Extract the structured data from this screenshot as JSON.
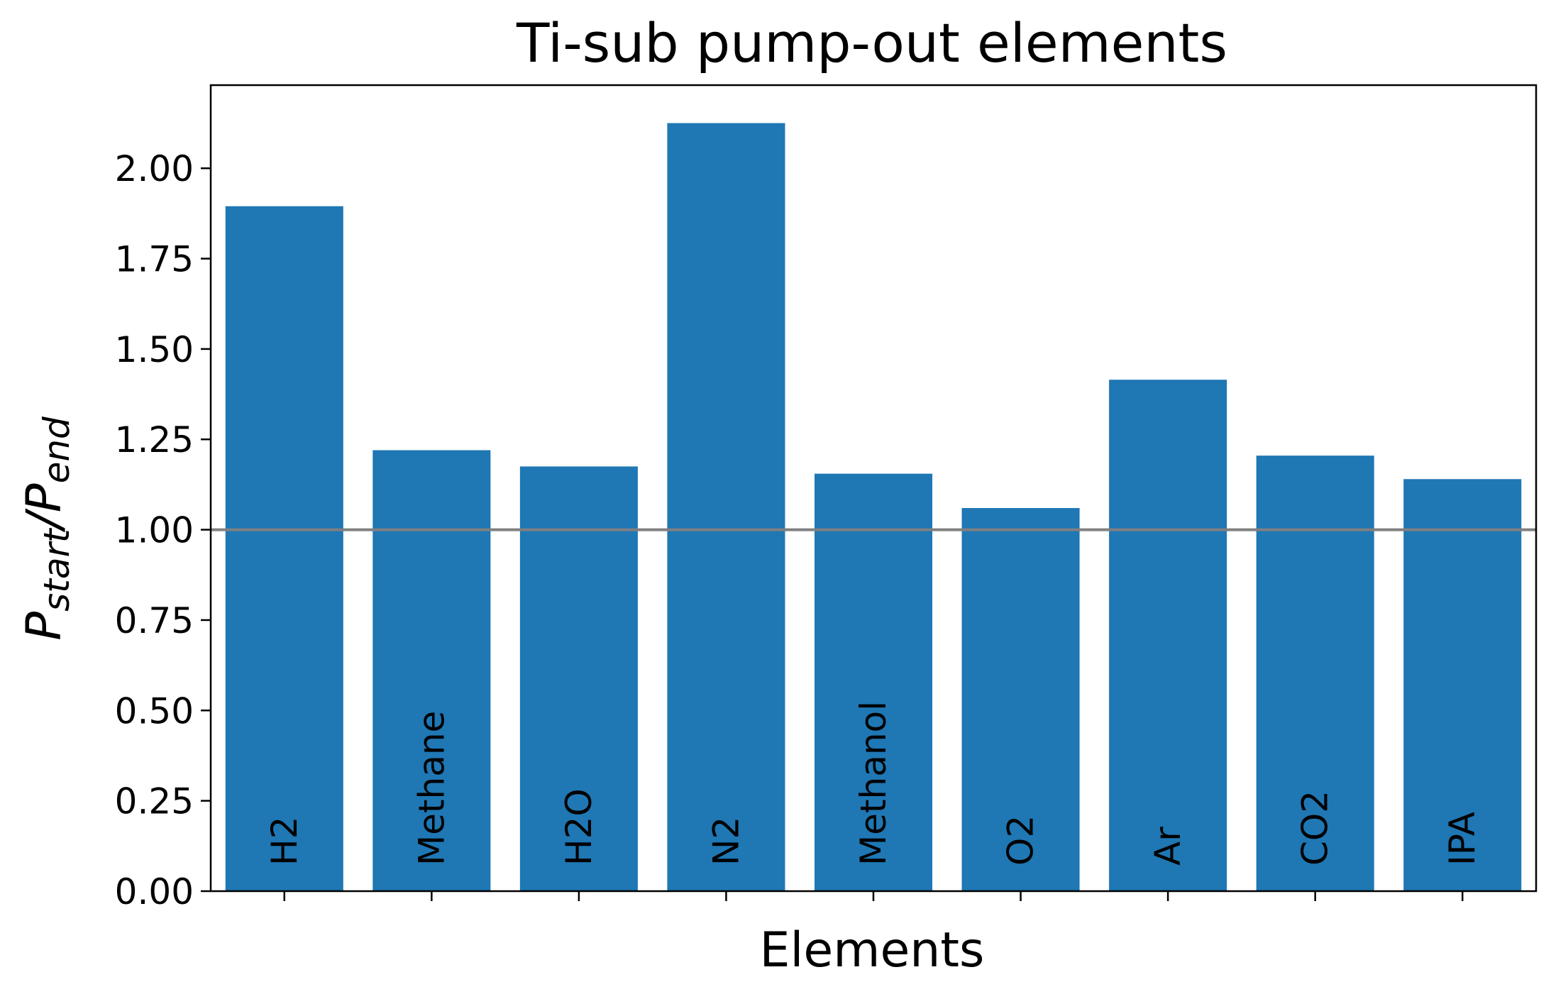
{
  "chart_data": {
    "type": "bar",
    "title": "Ti-sub pump-out elements",
    "xlabel": "Elements",
    "ylabel": {
      "main_1": "P",
      "sub_1": "start",
      "separator": "/",
      "main_2": "P",
      "sub_2": "end"
    },
    "categories": [
      "H2",
      "Methane",
      "H2O",
      "N2",
      "Methanol",
      "O2",
      "Ar",
      "CO2",
      "IPA"
    ],
    "values": [
      1.895,
      1.22,
      1.175,
      2.125,
      1.155,
      1.06,
      1.415,
      1.205,
      1.14
    ],
    "yticks": [
      "0.00",
      "0.25",
      "0.50",
      "0.75",
      "1.00",
      "1.25",
      "1.50",
      "1.75",
      "2.00"
    ],
    "ylim": [
      0,
      2.23
    ],
    "reference_line": 1.0,
    "bar_labels_rotated": true,
    "grid": false,
    "colors": {
      "bar": "#1f77b4",
      "reference_line": "#808080",
      "axes": "#000000"
    }
  }
}
